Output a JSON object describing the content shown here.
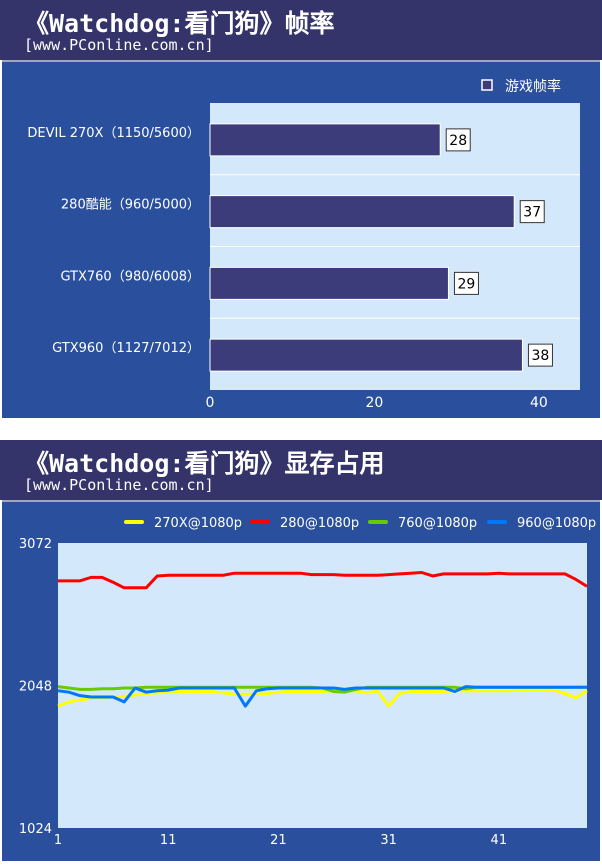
{
  "chart_data": [
    {
      "type": "bar",
      "orientation": "horizontal",
      "title": "《Watchdog:看门狗》帧率",
      "subtitle": "[www.PConline.com.cn]",
      "categories": [
        "DEVIL 270X（1150/5600）",
        "280酷能（960/5000）",
        "GTX760（980/6008）",
        "GTX960（1127/7012）"
      ],
      "series": [
        {
          "name": "游戏帧率",
          "values": [
            28,
            37,
            29,
            38
          ],
          "color": "#3c3c7a"
        }
      ],
      "xlim": [
        0,
        45
      ],
      "xticks": [
        0,
        20,
        40
      ],
      "grid": true,
      "legend": "top-right"
    },
    {
      "type": "line",
      "title": "《Watchdog:看门狗》显存占用",
      "subtitle": "[www.PConline.com.cn]",
      "xticks": [
        1,
        11,
        21,
        31,
        41
      ],
      "yticks": [
        1024,
        2048,
        3072
      ],
      "ylim": [
        1024,
        3072
      ],
      "xlim": [
        1,
        49
      ],
      "legend": "top",
      "grid": false,
      "series": [
        {
          "name": "270X@1080p",
          "color": "#ffff00",
          "values": [
            1900,
            1930,
            1945,
            1955,
            1960,
            1965,
            1970,
            1980,
            1990,
            1995,
            2000,
            2005,
            2005,
            2005,
            2005,
            1995,
            1985,
            1985,
            1985,
            1990,
            2000,
            2005,
            2005,
            2005,
            2005,
            2010,
            2010,
            2010,
            1995,
            2010,
            1900,
            1990,
            2005,
            2005,
            2005,
            2005,
            2010,
            2010,
            2010,
            2010,
            2010,
            2010,
            2015,
            2015,
            2015,
            2015,
            1990,
            1960,
            2010
          ]
        },
        {
          "name": "280@1080p",
          "color": "#ff0000",
          "values": [
            2800,
            2800,
            2800,
            2825,
            2825,
            2790,
            2750,
            2750,
            2750,
            2835,
            2840,
            2840,
            2840,
            2840,
            2840,
            2840,
            2855,
            2855,
            2855,
            2855,
            2855,
            2855,
            2855,
            2845,
            2845,
            2845,
            2840,
            2840,
            2840,
            2840,
            2845,
            2850,
            2855,
            2860,
            2835,
            2850,
            2850,
            2850,
            2850,
            2850,
            2855,
            2850,
            2850,
            2850,
            2850,
            2850,
            2850,
            2810,
            2760
          ]
        },
        {
          "name": "760@1080p",
          "color": "#66cc00",
          "values": [
            2040,
            2030,
            2020,
            2020,
            2025,
            2025,
            2030,
            2030,
            2035,
            2035,
            2035,
            2035,
            2035,
            2035,
            2035,
            2035,
            2035,
            2035,
            2035,
            2035,
            2035,
            2035,
            2035,
            2035,
            2030,
            2005,
            2000,
            2020,
            2035,
            2035,
            2035,
            2035,
            2035,
            2035,
            2035,
            2035,
            2035,
            2025,
            2035,
            2035,
            2035,
            2035,
            2035,
            2035,
            2035,
            2035,
            2035,
            2035,
            2035
          ]
        },
        {
          "name": "960@1080p",
          "color": "#0077ff",
          "values": [
            2010,
            2000,
            1975,
            1965,
            1965,
            1965,
            1930,
            2030,
            2000,
            2010,
            2015,
            2030,
            2030,
            2030,
            2030,
            2030,
            2030,
            1900,
            2010,
            2025,
            2030,
            2030,
            2030,
            2030,
            2030,
            2030,
            2020,
            2030,
            2030,
            2030,
            2030,
            2030,
            2030,
            2030,
            2030,
            2030,
            2005,
            2040,
            2035,
            2035,
            2035,
            2035,
            2035,
            2035,
            2035,
            2035,
            2035,
            2035,
            2035
          ]
        }
      ]
    }
  ]
}
